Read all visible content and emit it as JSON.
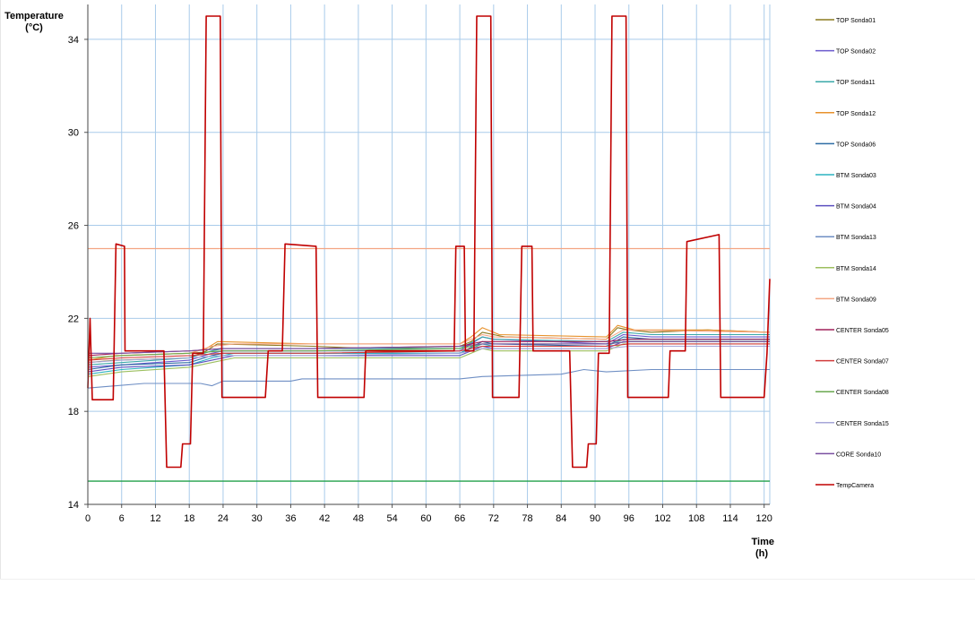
{
  "chart_data": {
    "type": "line",
    "ylabel": [
      "Temperature",
      "(°C)"
    ],
    "xlabel": [
      "Time",
      "(h)"
    ],
    "xlim": [
      0,
      121
    ],
    "ylim": [
      14,
      35.5
    ],
    "x_ticks": [
      0,
      6,
      12,
      18,
      24,
      30,
      36,
      42,
      48,
      54,
      60,
      66,
      72,
      78,
      84,
      90,
      96,
      102,
      108,
      114,
      120
    ],
    "y_ticks": [
      14,
      18,
      22,
      26,
      30,
      34
    ],
    "grid": true,
    "legend_position": "right",
    "reference_lines": [
      {
        "y": 25,
        "color": "#f4a582"
      },
      {
        "y": 15,
        "color": "#22a04a"
      }
    ],
    "series": [
      {
        "name": "TOP Sonda01",
        "color": "#8b7a1e",
        "points": [
          [
            0,
            20.1
          ],
          [
            5,
            20.2
          ],
          [
            18,
            20.3
          ],
          [
            21,
            20.6
          ],
          [
            23,
            20.9
          ],
          [
            40,
            20.8
          ],
          [
            50,
            20.7
          ],
          [
            66,
            20.8
          ],
          [
            68,
            21.0
          ],
          [
            70,
            21.4
          ],
          [
            72,
            21.3
          ],
          [
            74,
            21.2
          ],
          [
            92,
            21.1
          ],
          [
            94,
            21.6
          ],
          [
            96,
            21.5
          ],
          [
            100,
            21.4
          ],
          [
            110,
            21.5
          ],
          [
            121,
            21.4
          ]
        ]
      },
      {
        "name": "TOP Sonda02",
        "color": "#6a5acd",
        "points": [
          [
            0,
            19.9
          ],
          [
            6,
            20.0
          ],
          [
            18,
            20.2
          ],
          [
            22,
            20.5
          ],
          [
            24,
            20.6
          ],
          [
            40,
            20.6
          ],
          [
            66,
            20.6
          ],
          [
            70,
            21.2
          ],
          [
            72,
            21.1
          ],
          [
            92,
            20.9
          ],
          [
            95,
            21.3
          ],
          [
            100,
            21.2
          ],
          [
            121,
            21.2
          ]
        ]
      },
      {
        "name": "TOP Sonda11",
        "color": "#3aa8a8",
        "points": [
          [
            0,
            20.0
          ],
          [
            6,
            20.1
          ],
          [
            18,
            20.3
          ],
          [
            22,
            20.6
          ],
          [
            24,
            20.7
          ],
          [
            40,
            20.7
          ],
          [
            66,
            20.7
          ],
          [
            70,
            21.2
          ],
          [
            72,
            21.1
          ],
          [
            92,
            21.0
          ],
          [
            95,
            21.4
          ],
          [
            100,
            21.3
          ],
          [
            121,
            21.3
          ]
        ]
      },
      {
        "name": "TOP Sonda12",
        "color": "#e8922c",
        "points": [
          [
            0,
            20.2
          ],
          [
            5,
            20.4
          ],
          [
            18,
            20.5
          ],
          [
            21,
            20.7
          ],
          [
            23,
            21.0
          ],
          [
            40,
            20.9
          ],
          [
            66,
            20.9
          ],
          [
            68,
            21.2
          ],
          [
            70,
            21.6
          ],
          [
            73,
            21.3
          ],
          [
            92,
            21.2
          ],
          [
            94,
            21.7
          ],
          [
            97,
            21.5
          ],
          [
            110,
            21.5
          ],
          [
            121,
            21.4
          ]
        ]
      },
      {
        "name": "TOP Sonda06",
        "color": "#2e6da4",
        "points": [
          [
            0,
            19.8
          ],
          [
            6,
            20.0
          ],
          [
            18,
            20.1
          ],
          [
            22,
            20.4
          ],
          [
            24,
            20.5
          ],
          [
            40,
            20.5
          ],
          [
            66,
            20.5
          ],
          [
            70,
            21.0
          ],
          [
            72,
            20.9
          ],
          [
            92,
            20.8
          ],
          [
            95,
            21.2
          ],
          [
            100,
            21.1
          ],
          [
            121,
            21.1
          ]
        ]
      },
      {
        "name": "BTM Sonda03",
        "color": "#2bb3c0",
        "points": [
          [
            0,
            19.6
          ],
          [
            6,
            19.8
          ],
          [
            18,
            20.0
          ],
          [
            22,
            20.3
          ],
          [
            26,
            20.5
          ],
          [
            40,
            20.5
          ],
          [
            66,
            20.5
          ],
          [
            70,
            20.9
          ],
          [
            72,
            20.8
          ],
          [
            92,
            20.8
          ],
          [
            95,
            21.1
          ],
          [
            121,
            21.1
          ]
        ]
      },
      {
        "name": "BTM Sonda04",
        "color": "#5b4fbf",
        "points": [
          [
            0,
            19.7
          ],
          [
            6,
            19.9
          ],
          [
            18,
            20.0
          ],
          [
            22,
            20.2
          ],
          [
            26,
            20.4
          ],
          [
            40,
            20.4
          ],
          [
            66,
            20.4
          ],
          [
            70,
            20.8
          ],
          [
            72,
            20.7
          ],
          [
            92,
            20.7
          ],
          [
            95,
            21.0
          ],
          [
            121,
            21.0
          ]
        ]
      },
      {
        "name": "BTM Sonda13",
        "color": "#6f8fc4",
        "points": [
          [
            0,
            19.0
          ],
          [
            10,
            19.2
          ],
          [
            20,
            19.2
          ],
          [
            22,
            19.1
          ],
          [
            24,
            19.3
          ],
          [
            36,
            19.3
          ],
          [
            38,
            19.4
          ],
          [
            60,
            19.4
          ],
          [
            66,
            19.4
          ],
          [
            70,
            19.5
          ],
          [
            84,
            19.6
          ],
          [
            88,
            19.8
          ],
          [
            92,
            19.7
          ],
          [
            100,
            19.8
          ],
          [
            121,
            19.8
          ]
        ]
      },
      {
        "name": "BTM Sonda14",
        "color": "#9cbf5f",
        "points": [
          [
            0,
            19.5
          ],
          [
            6,
            19.7
          ],
          [
            18,
            19.9
          ],
          [
            22,
            20.1
          ],
          [
            26,
            20.3
          ],
          [
            40,
            20.3
          ],
          [
            66,
            20.3
          ],
          [
            70,
            20.7
          ],
          [
            72,
            20.6
          ],
          [
            92,
            20.6
          ],
          [
            95,
            20.9
          ],
          [
            121,
            20.9
          ]
        ]
      },
      {
        "name": "BTM Sonda09",
        "color": "#f4a582",
        "points": [
          [
            0,
            20.3
          ],
          [
            6,
            20.4
          ],
          [
            18,
            20.5
          ],
          [
            22,
            20.8
          ],
          [
            26,
            20.9
          ],
          [
            40,
            20.9
          ],
          [
            66,
            20.9
          ],
          [
            70,
            21.3
          ],
          [
            72,
            21.2
          ],
          [
            92,
            21.1
          ],
          [
            95,
            21.5
          ],
          [
            121,
            21.4
          ]
        ]
      },
      {
        "name": "CENTER Sonda05",
        "color": "#a0205a",
        "points": [
          [
            0,
            20.4
          ],
          [
            6,
            20.5
          ],
          [
            18,
            20.6
          ],
          [
            24,
            20.7
          ],
          [
            40,
            20.7
          ],
          [
            66,
            20.8
          ],
          [
            70,
            21.0
          ],
          [
            92,
            21.0
          ],
          [
            96,
            21.1
          ],
          [
            121,
            21.1
          ]
        ]
      },
      {
        "name": "CENTER Sonda07",
        "color": "#d23c3c",
        "points": [
          [
            0,
            20.2
          ],
          [
            6,
            20.3
          ],
          [
            18,
            20.4
          ],
          [
            24,
            20.5
          ],
          [
            40,
            20.5
          ],
          [
            66,
            20.6
          ],
          [
            70,
            20.8
          ],
          [
            92,
            20.8
          ],
          [
            96,
            20.9
          ],
          [
            121,
            20.9
          ]
        ]
      },
      {
        "name": "CENTER Sonda08",
        "color": "#6aa84f",
        "points": [
          [
            0,
            20.3
          ],
          [
            6,
            20.4
          ],
          [
            18,
            20.5
          ],
          [
            24,
            20.6
          ],
          [
            40,
            20.6
          ],
          [
            66,
            20.7
          ],
          [
            70,
            20.9
          ],
          [
            92,
            20.9
          ],
          [
            96,
            21.0
          ],
          [
            121,
            21.0
          ]
        ]
      },
      {
        "name": "CENTER Sonda15",
        "color": "#a6a6d8",
        "points": [
          [
            0,
            20.1
          ],
          [
            6,
            20.2
          ],
          [
            18,
            20.3
          ],
          [
            24,
            20.4
          ],
          [
            40,
            20.4
          ],
          [
            66,
            20.5
          ],
          [
            70,
            20.7
          ],
          [
            92,
            20.7
          ],
          [
            96,
            20.8
          ],
          [
            121,
            20.8
          ]
        ]
      },
      {
        "name": "CORE Sonda10",
        "color": "#7a4fa0",
        "points": [
          [
            0,
            20.5
          ],
          [
            6,
            20.5
          ],
          [
            18,
            20.6
          ],
          [
            24,
            20.7
          ],
          [
            40,
            20.7
          ],
          [
            66,
            20.8
          ],
          [
            70,
            20.9
          ],
          [
            92,
            20.9
          ],
          [
            96,
            21.0
          ],
          [
            121,
            21.0
          ]
        ]
      },
      {
        "name": "TempCamera",
        "color": "#c00000",
        "points": [
          [
            0,
            19.0
          ],
          [
            0.4,
            22.0
          ],
          [
            0.8,
            18.5
          ],
          [
            4.5,
            18.5
          ],
          [
            5,
            25.2
          ],
          [
            6.5,
            25.1
          ],
          [
            6.6,
            20.6
          ],
          [
            13.5,
            20.6
          ],
          [
            14,
            15.6
          ],
          [
            16.5,
            15.6
          ],
          [
            16.8,
            16.6
          ],
          [
            18.2,
            16.6
          ],
          [
            18.6,
            20.5
          ],
          [
            20.5,
            20.5
          ],
          [
            21,
            35.0
          ],
          [
            23.5,
            35.0
          ],
          [
            23.8,
            18.6
          ],
          [
            31.5,
            18.6
          ],
          [
            32,
            20.6
          ],
          [
            34.5,
            20.6
          ],
          [
            35,
            25.2
          ],
          [
            40.5,
            25.1
          ],
          [
            40.8,
            18.6
          ],
          [
            49,
            18.6
          ],
          [
            49.3,
            20.6
          ],
          [
            65,
            20.6
          ],
          [
            65.3,
            25.1
          ],
          [
            66.8,
            25.1
          ],
          [
            67,
            20.6
          ],
          [
            68.5,
            20.6
          ],
          [
            69,
            35.0
          ],
          [
            71.5,
            35.0
          ],
          [
            71.8,
            18.6
          ],
          [
            76.5,
            18.6
          ],
          [
            77,
            25.1
          ],
          [
            78.8,
            25.1
          ],
          [
            79,
            20.6
          ],
          [
            85.5,
            20.6
          ],
          [
            86,
            15.6
          ],
          [
            88.5,
            15.6
          ],
          [
            88.8,
            16.6
          ],
          [
            90.2,
            16.6
          ],
          [
            90.6,
            20.5
          ],
          [
            92.5,
            20.5
          ],
          [
            93,
            35.0
          ],
          [
            95.5,
            35.0
          ],
          [
            95.8,
            18.6
          ],
          [
            103,
            18.6
          ],
          [
            103.3,
            20.6
          ],
          [
            106,
            20.6
          ],
          [
            106.3,
            25.3
          ],
          [
            112,
            25.6
          ],
          [
            112.3,
            18.6
          ],
          [
            120,
            18.6
          ],
          [
            120.5,
            20.5
          ],
          [
            121,
            23.7
          ]
        ]
      }
    ]
  }
}
